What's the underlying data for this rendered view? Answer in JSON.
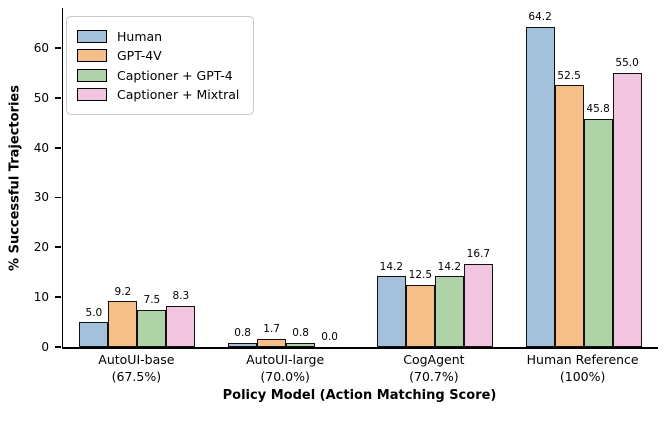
{
  "chart_data": {
    "type": "bar",
    "title": "",
    "xlabel": "Policy Model (Action Matching Score)",
    "ylabel": "% Successful Trajectories",
    "ylim": [
      0,
      68
    ],
    "yticks": [
      "0",
      "10",
      "20",
      "30",
      "40",
      "50",
      "60"
    ],
    "grid": false,
    "legend_position": "upper left",
    "bar_edge_color": "#111111",
    "categories": [
      {
        "label": "AutoUI-base",
        "sublabel": "(67.5%)"
      },
      {
        "label": "AutoUI-large",
        "sublabel": "(70.0%)"
      },
      {
        "label": "CogAgent",
        "sublabel": "(70.7%)"
      },
      {
        "label": "Human Reference",
        "sublabel": "(100%)"
      }
    ],
    "series": [
      {
        "name": "Human",
        "color": "#a3c0dd",
        "values": [
          5.0,
          0.8,
          14.2,
          64.2
        ]
      },
      {
        "name": "GPT-4V",
        "color": "#f6bf87",
        "values": [
          9.2,
          1.7,
          12.5,
          52.5
        ]
      },
      {
        "name": "Captioner + GPT-4",
        "color": "#aed3a6",
        "values": [
          7.5,
          0.8,
          14.2,
          45.8
        ]
      },
      {
        "name": "Captioner + Mixtral",
        "color": "#f2c4e0",
        "values": [
          8.3,
          0.0,
          16.7,
          55.0
        ]
      }
    ]
  }
}
